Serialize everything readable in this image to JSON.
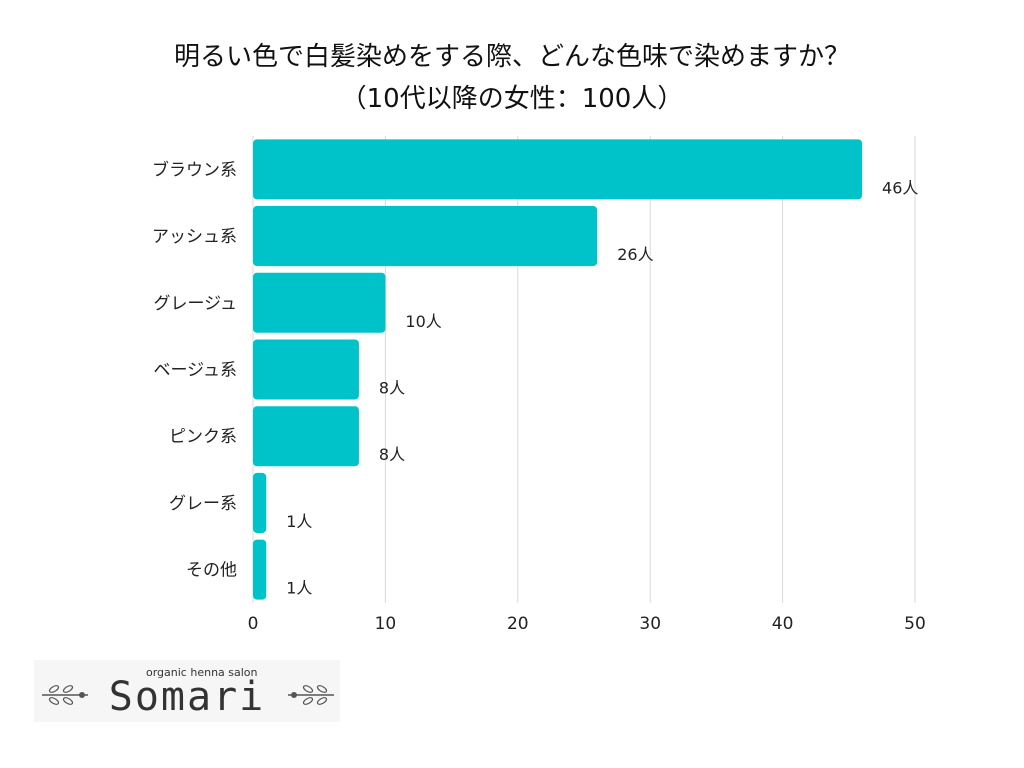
{
  "chart_data": {
    "type": "bar",
    "orientation": "horizontal",
    "title_line1": "明るい色で白髪染めをする際、どんな色味で染めますか？",
    "title_line2": "（10代以降の女性：100人）",
    "categories": [
      "ブラウン系",
      "アッシュ系",
      "グレージュ",
      "ベージュ系",
      "ピンク系",
      "グレー系",
      "その他"
    ],
    "values": [
      46,
      26,
      10,
      8,
      8,
      1,
      1
    ],
    "value_labels": [
      "46人",
      "26人",
      "10人",
      "8人",
      "8人",
      "1人",
      "1人"
    ],
    "value_unit": "人",
    "xlim": [
      0,
      50
    ],
    "xticks": [
      0,
      10,
      20,
      30,
      40,
      50
    ],
    "xlabel": "",
    "ylabel": "",
    "grid": "vertical",
    "bar_color": "#00c2c9",
    "grid_color": "#d9d9d9"
  },
  "logo": {
    "tagline": "organic henna salon",
    "name": "Somari",
    "color": "#333333"
  }
}
